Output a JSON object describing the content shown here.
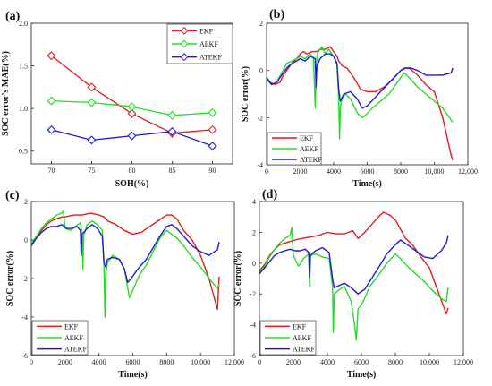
{
  "colors": {
    "EKF": "#e31a1c",
    "AEKF": "#22dd22",
    "ATEKF": "#1a1ad6"
  },
  "chart_data": [
    {
      "panel": "(a)",
      "type": "line",
      "xlabel": "SOH(%)",
      "ylabel": "SOC error's MAE(%)",
      "xlim": [
        67.5,
        92.5
      ],
      "ylim": [
        0.35,
        2.0
      ],
      "xticks": [
        70,
        75,
        80,
        85,
        90
      ],
      "yticks": [
        0.5,
        1.0,
        1.5,
        2.0
      ],
      "ytick_labels": [
        "0.5",
        "1.0",
        "1.5",
        "2.0"
      ],
      "legend": "top-right",
      "series": [
        {
          "name": "EKF",
          "x": [
            70,
            75,
            80,
            85,
            90
          ],
          "values": [
            1.62,
            1.25,
            0.94,
            0.71,
            0.75
          ]
        },
        {
          "name": "AEKF",
          "x": [
            70,
            75,
            80,
            85,
            90
          ],
          "values": [
            1.09,
            1.07,
            1.02,
            0.92,
            0.95
          ]
        },
        {
          "name": "ATEKF",
          "x": [
            70,
            75,
            80,
            85,
            90
          ],
          "values": [
            0.75,
            0.63,
            0.68,
            0.73,
            0.56
          ]
        }
      ]
    },
    {
      "panel": "(b)",
      "type": "line",
      "xlabel": "Time(s)",
      "ylabel": "SOC error(%)",
      "xlim": [
        0,
        12000
      ],
      "ylim": [
        -4,
        2
      ],
      "xticks": [
        0,
        2000,
        4000,
        6000,
        8000,
        10000,
        12000
      ],
      "xtick_labels": [
        "0",
        "2000",
        "4000",
        "6000",
        "8000",
        "10,000",
        "12,000"
      ],
      "yticks": [
        -4,
        -2,
        0,
        2
      ],
      "legend": "bottom-left",
      "series": [
        {
          "name": "EKF",
          "x": [
            0,
            200,
            500,
            800,
            1000,
            1200,
            1500,
            1800,
            2000,
            2200,
            2400,
            2700,
            3000,
            3200,
            3500,
            3800,
            4000,
            4200,
            4300,
            4500,
            4800,
            5200,
            5600,
            6000,
            6500,
            7000,
            7500,
            8000,
            8200,
            8500,
            9000,
            9500,
            10000,
            10500,
            11000,
            11100
          ],
          "values": [
            -0.3,
            -0.5,
            -0.6,
            -0.5,
            -0.2,
            0.0,
            0.3,
            0.5,
            0.7,
            0.8,
            0.7,
            0.8,
            0.8,
            0.9,
            0.9,
            1.0,
            0.8,
            0.6,
            0.4,
            0.2,
            0.1,
            -0.3,
            -0.8,
            -0.9,
            -0.9,
            -0.7,
            -0.4,
            0.0,
            0.1,
            0.1,
            -0.2,
            -0.6,
            -0.9,
            -2.0,
            -3.6,
            -3.8
          ]
        },
        {
          "name": "AEKF",
          "x": [
            0,
            300,
            600,
            900,
            1200,
            1500,
            1800,
            2000,
            2300,
            2600,
            2800,
            2900,
            2950,
            3000,
            3100,
            3300,
            3500,
            3700,
            4000,
            4200,
            4300,
            4350,
            4400,
            4500,
            4700,
            5000,
            5400,
            5700,
            5900,
            6300,
            6800,
            7300,
            7800,
            8200,
            8500,
            9000,
            9500,
            10000,
            10500,
            11000,
            11100
          ],
          "values": [
            -0.4,
            -0.6,
            -0.5,
            -0.1,
            0.3,
            0.4,
            0.5,
            0.6,
            0.5,
            0.7,
            0.5,
            -1.6,
            -0.5,
            0.6,
            0.8,
            1.0,
            0.7,
            0.9,
            0.6,
            0.2,
            -1.2,
            -2.9,
            -1.5,
            -1.2,
            -1.0,
            -1.2,
            -1.8,
            -2.0,
            -1.9,
            -1.6,
            -1.3,
            -1.0,
            -0.5,
            -0.1,
            -0.3,
            -0.7,
            -1.0,
            -1.3,
            -1.6,
            -2.1,
            -2.2
          ]
        },
        {
          "name": "ATEKF",
          "x": [
            0,
            300,
            600,
            900,
            1200,
            1500,
            1800,
            2000,
            2300,
            2600,
            2900,
            2950,
            3000,
            3200,
            3500,
            3800,
            4000,
            4200,
            4300,
            4400,
            4600,
            5000,
            5400,
            5700,
            6000,
            6400,
            6800,
            7200,
            7600,
            8000,
            8300,
            8600,
            9000,
            9500,
            10000,
            10500,
            11000,
            11100
          ],
          "values": [
            -0.3,
            -0.6,
            -0.5,
            -0.2,
            0.1,
            0.3,
            0.4,
            0.5,
            0.4,
            0.6,
            0.5,
            -0.7,
            0.2,
            0.5,
            0.7,
            0.7,
            0.6,
            0.3,
            -0.8,
            -1.3,
            -1.0,
            -0.9,
            -1.2,
            -1.6,
            -1.5,
            -1.2,
            -0.9,
            -0.6,
            -0.3,
            0.0,
            0.1,
            0.1,
            0.0,
            -0.2,
            -0.2,
            -0.2,
            -0.1,
            0.1
          ]
        }
      ]
    },
    {
      "panel": "(c)",
      "type": "line",
      "xlabel": "Time(s)",
      "ylabel": "SOC error(%)",
      "xlim": [
        0,
        12000
      ],
      "ylim": [
        -6,
        2
      ],
      "xticks": [
        0,
        2000,
        4000,
        6000,
        8000,
        10000,
        12000
      ],
      "xtick_labels": [
        "0",
        "2000",
        "4000",
        "6000",
        "8000",
        "10,000",
        "12,000"
      ],
      "yticks": [
        -6,
        -4,
        -2,
        0,
        2
      ],
      "legend": "bottom-left",
      "series": [
        {
          "name": "EKF",
          "x": [
            0,
            300,
            600,
            900,
            1200,
            1500,
            1800,
            2000,
            2500,
            3000,
            3500,
            4000,
            4300,
            4500,
            5000,
            5500,
            6000,
            6500,
            7000,
            7500,
            8000,
            8300,
            8600,
            9000,
            9500,
            10000,
            10500,
            11000,
            11100
          ],
          "values": [
            -0.3,
            0.1,
            0.5,
            0.8,
            1.0,
            1.1,
            1.2,
            1.2,
            1.3,
            1.3,
            1.4,
            1.3,
            1.2,
            1.0,
            0.8,
            0.5,
            0.3,
            0.4,
            0.7,
            1.0,
            1.3,
            1.3,
            1.1,
            0.5,
            0.0,
            -0.8,
            -2.0,
            -3.6,
            -1.9
          ]
        },
        {
          "name": "AEKF",
          "x": [
            0,
            300,
            600,
            900,
            1200,
            1500,
            1800,
            1900,
            2000,
            2300,
            2600,
            2900,
            3000,
            3050,
            3100,
            3300,
            3600,
            3900,
            4200,
            4300,
            4350,
            4400,
            4500,
            4800,
            5200,
            5500,
            5700,
            5800,
            6000,
            6400,
            6800,
            7200,
            7600,
            8000,
            8300,
            8600,
            9000,
            9500,
            10000,
            10500,
            11000,
            11100
          ],
          "values": [
            -0.2,
            0.2,
            0.6,
            0.9,
            1.1,
            1.3,
            1.4,
            1.5,
            0.6,
            0.5,
            0.7,
            0.9,
            0.3,
            -1.5,
            0.2,
            0.8,
            1.0,
            0.8,
            0.5,
            -1.5,
            -4.0,
            -1.8,
            -1.2,
            -0.8,
            -1.0,
            -1.5,
            -2.5,
            -3.0,
            -2.6,
            -1.8,
            -1.3,
            -0.6,
            0.1,
            0.5,
            0.3,
            0.1,
            -0.3,
            -0.9,
            -1.4,
            -2.0,
            -2.5,
            -2.3
          ]
        },
        {
          "name": "ATEKF",
          "x": [
            0,
            300,
            600,
            900,
            1200,
            1500,
            1800,
            2100,
            2400,
            2700,
            2900,
            2950,
            3000,
            3300,
            3600,
            3900,
            4200,
            4300,
            4400,
            4500,
            4800,
            5200,
            5500,
            5700,
            5900,
            6300,
            6800,
            7200,
            7600,
            8000,
            8300,
            8600,
            9000,
            9500,
            10000,
            10500,
            11000,
            11100
          ],
          "values": [
            -0.3,
            0.1,
            0.4,
            0.6,
            0.7,
            0.7,
            0.8,
            0.6,
            0.6,
            0.7,
            0.5,
            -0.8,
            0.3,
            0.6,
            0.8,
            0.6,
            0.2,
            -1.2,
            -1.4,
            -1.0,
            -0.9,
            -1.0,
            -1.5,
            -2.2,
            -2.0,
            -1.5,
            -1.0,
            -0.4,
            0.2,
            0.7,
            0.8,
            0.6,
            0.2,
            -0.3,
            -0.6,
            -0.8,
            -0.5,
            -0.1
          ]
        }
      ]
    },
    {
      "panel": "(d)",
      "type": "line",
      "xlabel": "Time(s)",
      "ylabel": "SOC error(%)",
      "xlim": [
        0,
        12000
      ],
      "ylim": [
        -6,
        4
      ],
      "xticks": [
        0,
        2000,
        4000,
        6000,
        8000,
        10000,
        12000
      ],
      "xtick_labels": [
        "0",
        "2000",
        "4000",
        "6000",
        "8000",
        "10,000",
        "12,000"
      ],
      "yticks": [
        -6,
        -4,
        -2,
        0,
        2,
        4
      ],
      "legend": "bottom-left",
      "series": [
        {
          "name": "EKF",
          "x": [
            0,
            300,
            600,
            900,
            1200,
            1500,
            1800,
            2100,
            2500,
            3000,
            3500,
            4000,
            4500,
            5000,
            5500,
            5800,
            6200,
            6600,
            7000,
            7300,
            7700,
            8000,
            8300,
            8600,
            9000,
            9500,
            10000,
            10500,
            11000,
            11100
          ],
          "values": [
            -0.5,
            -0.1,
            0.5,
            0.9,
            1.2,
            1.3,
            1.4,
            1.5,
            1.6,
            1.7,
            1.8,
            2.0,
            1.9,
            1.9,
            2.1,
            1.6,
            2.0,
            2.5,
            3.0,
            3.3,
            3.1,
            2.8,
            2.2,
            1.6,
            1.2,
            0.4,
            -0.3,
            -1.8,
            -3.3,
            -2.9
          ]
        },
        {
          "name": "AEKF",
          "x": [
            0,
            300,
            600,
            900,
            1200,
            1500,
            1800,
            1900,
            2000,
            2300,
            2600,
            2900,
            2950,
            3000,
            3300,
            3700,
            4100,
            4300,
            4350,
            4400,
            4600,
            5000,
            5400,
            5600,
            5700,
            5800,
            6100,
            6500,
            7000,
            7500,
            8000,
            8300,
            8700,
            9200,
            9700,
            10200,
            10700,
            11000,
            11100
          ],
          "values": [
            -0.6,
            -0.2,
            0.4,
            0.9,
            1.3,
            1.6,
            1.8,
            2.3,
            0.5,
            -0.2,
            0.3,
            0.6,
            -1.5,
            0.5,
            0.6,
            0.4,
            0.3,
            -1.5,
            -4.5,
            -2.0,
            -1.8,
            -1.5,
            -2.5,
            -4.0,
            -5.0,
            -3.0,
            -2.5,
            -1.5,
            -0.8,
            0.0,
            0.6,
            0.3,
            -0.2,
            -0.7,
            -1.2,
            -1.8,
            -2.3,
            -2.5,
            -1.6
          ]
        },
        {
          "name": "ATEKF",
          "x": [
            0,
            300,
            600,
            900,
            1200,
            1500,
            1800,
            2100,
            2400,
            2700,
            2900,
            2950,
            3000,
            3300,
            3700,
            4100,
            4300,
            4400,
            4600,
            5000,
            5400,
            5800,
            6200,
            6600,
            7000,
            7500,
            8000,
            8300,
            8700,
            9200,
            9700,
            10200,
            10700,
            11000,
            11100
          ],
          "values": [
            -0.7,
            -0.3,
            0.1,
            0.5,
            0.7,
            0.8,
            0.9,
            0.8,
            0.8,
            0.9,
            0.7,
            -0.9,
            0.5,
            0.8,
            1.0,
            0.7,
            -1.0,
            -1.6,
            -1.5,
            -1.3,
            -1.6,
            -2.0,
            -1.7,
            -1.0,
            -0.3,
            0.6,
            1.2,
            1.5,
            1.2,
            0.8,
            0.4,
            0.3,
            0.8,
            1.3,
            1.8
          ]
        }
      ]
    }
  ]
}
